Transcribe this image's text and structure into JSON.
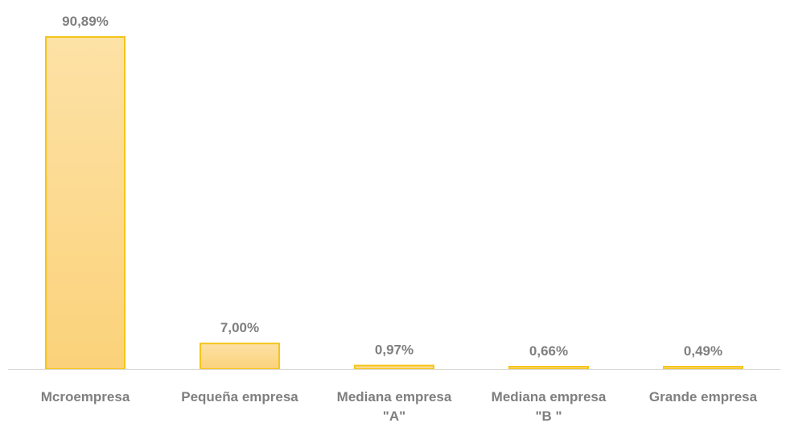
{
  "chart_data": {
    "type": "bar",
    "categories": [
      [
        "Mcroempresa"
      ],
      [
        "Pequeña empresa"
      ],
      [
        "Mediana empresa",
        "\"A\""
      ],
      [
        "Mediana empresa",
        "\"B \""
      ],
      [
        "Grande empresa"
      ]
    ],
    "values": [
      90.89,
      7.0,
      0.97,
      0.66,
      0.49
    ],
    "value_labels": [
      "90,89%",
      "7,00%",
      "0,97%",
      "0,66%",
      "0,49%"
    ],
    "ylim": [
      0,
      90.89
    ],
    "grid": false,
    "legend": "none",
    "colors": {
      "bar_fill_top": "#fde2a6",
      "bar_fill_bottom": "#fbd27a",
      "bar_stroke": "#f5c518",
      "axis_line": "#d9d9d9",
      "text": "#7f7f7f"
    }
  }
}
